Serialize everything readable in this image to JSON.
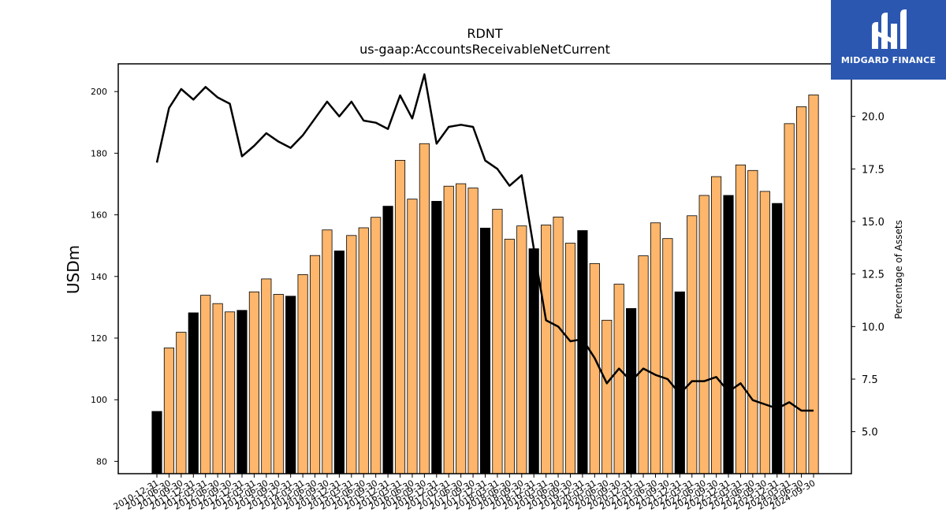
{
  "brand": {
    "name": "MIDGARD FINANCE",
    "bg_color": "#2b57b1",
    "icon": "midgard-m-logo-icon"
  },
  "chart_data": {
    "type": "bar",
    "title": "RDNT",
    "subtitle": "us-gaap:AccountsReceivableNetCurrent",
    "ylabel": "USDm",
    "y2label": "Percentage of Assets",
    "ylim": [
      76,
      209
    ],
    "y2lim": [
      3,
      22.5
    ],
    "yticks": [
      80,
      100,
      120,
      140,
      160,
      180,
      200
    ],
    "y2ticks": [
      "5.0",
      "7.5",
      "10.0",
      "12.5",
      "15.0",
      "17.5",
      "20.0"
    ],
    "grid": false,
    "bar_colors": {
      "q4": "#000000",
      "other": "#fdb66b",
      "edge": "#000000"
    },
    "line_color": "#000000",
    "categories": [
      "2010-12-31",
      "2011-06-30",
      "2011-09-30",
      "2011-12-31",
      "2012-03-31",
      "2012-06-30",
      "2012-09-30",
      "2012-12-31",
      "2013-03-31",
      "2013-06-30",
      "2013-09-30",
      "2013-12-31",
      "2014-03-31",
      "2014-06-30",
      "2014-09-30",
      "2014-12-31",
      "2015-03-31",
      "2015-06-30",
      "2015-09-30",
      "2015-12-31",
      "2016-03-31",
      "2016-06-30",
      "2016-09-30",
      "2016-12-31",
      "2017-03-31",
      "2017-06-30",
      "2017-09-30",
      "2017-12-31",
      "2018-03-31",
      "2018-06-30",
      "2018-09-30",
      "2018-12-31",
      "2019-03-31",
      "2019-06-30",
      "2019-09-30",
      "2019-12-31",
      "2020-03-31",
      "2020-06-30",
      "2020-09-30",
      "2020-12-31",
      "2021-03-31",
      "2021-06-30",
      "2021-09-30",
      "2021-12-31",
      "2022-03-31",
      "2022-06-30",
      "2022-09-30",
      "2022-12-31",
      "2023-03-31",
      "2023-06-30",
      "2023-09-30",
      "2023-12-31",
      "2024-03-31",
      "2024-06-30",
      "2024-09-30"
    ],
    "series": [
      {
        "type": "bar",
        "axis": "left",
        "values": [
          96.2,
          116.8,
          121.9,
          128.2,
          133.9,
          131.2,
          128.5,
          129.0,
          135.0,
          139.2,
          134.2,
          133.6,
          140.6,
          146.8,
          155.1,
          148.3,
          153.3,
          155.8,
          159.2,
          162.8,
          177.7,
          165.1,
          183.1,
          164.4,
          169.3,
          170.1,
          168.7,
          155.7,
          161.8,
          152.1,
          156.4,
          149.0,
          156.7,
          159.3,
          150.8,
          154.9,
          144.2,
          125.8,
          137.5,
          129.6,
          146.7,
          157.4,
          152.3,
          135.0,
          159.7,
          166.3,
          172.4,
          166.3,
          176.2,
          174.4,
          167.6,
          163.7,
          189.6,
          195.1,
          198.9
        ]
      },
      {
        "type": "line",
        "axis": "right",
        "values": [
          17.8,
          20.4,
          21.3,
          20.8,
          21.4,
          20.9,
          20.6,
          18.1,
          18.6,
          19.2,
          18.8,
          18.5,
          19.1,
          19.9,
          20.7,
          20.0,
          20.7,
          19.8,
          19.7,
          19.4,
          21.0,
          19.9,
          22.0,
          18.7,
          19.5,
          19.6,
          19.5,
          17.9,
          17.5,
          16.7,
          17.2,
          13.7,
          10.3,
          10.0,
          9.3,
          9.4,
          8.5,
          7.3,
          8.0,
          7.4,
          8.0,
          7.7,
          7.5,
          6.8,
          7.4,
          7.4,
          7.6,
          6.9,
          7.3,
          6.5,
          6.3,
          6.1,
          6.4,
          6.0,
          6.0
        ]
      }
    ]
  }
}
